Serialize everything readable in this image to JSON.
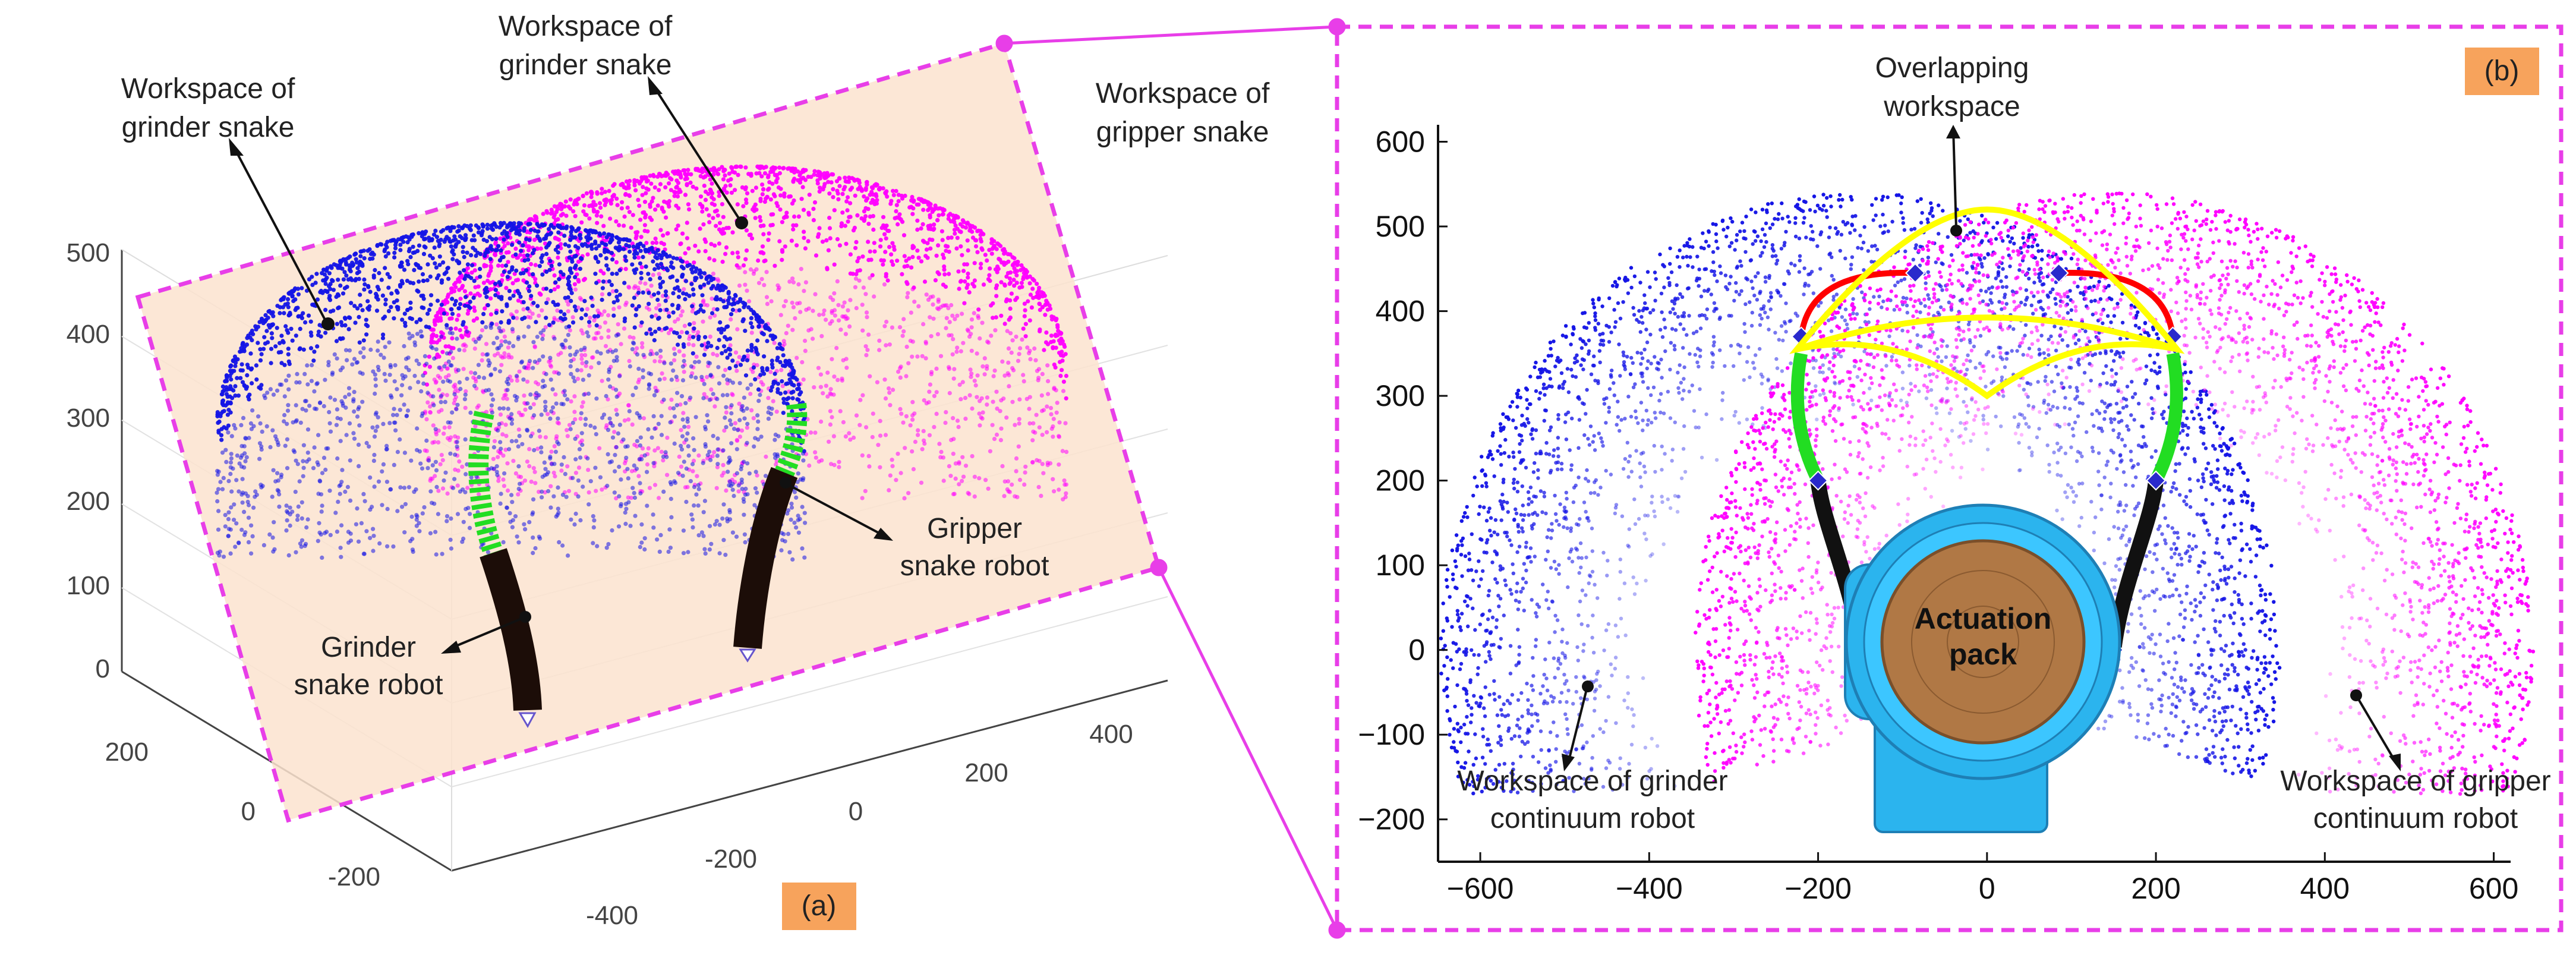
{
  "figure": {
    "panel_a": {
      "tag": "(a)",
      "labels": {
        "grinder_ws_left_1": "Workspace of",
        "grinder_ws_left_2": "grinder snake",
        "grinder_ws_top_1": "Workspace of",
        "grinder_ws_top_2": "grinder snake",
        "gripper_ws_1": "Workspace of",
        "gripper_ws_2": "gripper snake",
        "gripper_robot_1": "Gripper",
        "gripper_robot_2": "snake robot",
        "grinder_robot_1": "Grinder",
        "grinder_robot_2": "snake robot"
      }
    },
    "panel_b": {
      "tag": "(b)",
      "labels": {
        "overlap_1": "Overlapping",
        "overlap_2": "workspace",
        "actuation_1": "Actuation",
        "actuation_2": "pack",
        "grinder_cont_1": "Workspace of grinder",
        "grinder_cont_2": "continuum robot",
        "gripper_cont_1": "Workspace of gripper",
        "gripper_cont_2": "continuum robot"
      }
    },
    "colors": {
      "grinder_workspace": "#1414e6",
      "gripper_workspace": "#ff00ff",
      "frame_dashed": "#e83ee8",
      "plane_fill": "#fbe3cf",
      "overlap_outline": "#ffff00",
      "curved_segment": "#ff0000",
      "flexible_segment": "#22dd22",
      "rigid_segment": "#111111",
      "actuation_blue": "#2bb4ee",
      "actuation_wood": "#b07845",
      "tag_bg": "#f7a35c"
    }
  },
  "chart_data": [
    {
      "type": "scatter",
      "title": "",
      "dimensions": 3,
      "x_ticks": [
        -400,
        -200,
        0,
        200,
        400
      ],
      "y_ticks": [
        -200,
        0,
        200
      ],
      "z_ticks": [
        0,
        100,
        200,
        300,
        400,
        500
      ],
      "z_tick_labels": [
        "0",
        "100",
        "200",
        "300",
        "400",
        "500"
      ],
      "x_tick_labels": [
        "-400",
        "-200",
        "0",
        "200",
        "400"
      ],
      "y_tick_labels": [
        "-200",
        "0",
        "200"
      ],
      "series": [
        {
          "name": "Workspace of grinder snake",
          "color": "#1414e6",
          "center_x": -150,
          "center_y": 0,
          "max_z": 540
        },
        {
          "name": "Workspace of gripper snake",
          "color": "#ff00ff",
          "center_x": 150,
          "center_y": 0,
          "max_z": 540
        }
      ]
    },
    {
      "type": "scatter",
      "title": "",
      "xlim": [
        -650,
        620
      ],
      "ylim": [
        -250,
        620
      ],
      "x_ticks": [
        -600,
        -400,
        -200,
        0,
        200,
        400,
        600
      ],
      "x_tick_labels": [
        "−600",
        "−400",
        "−200",
        "0",
        "200",
        "400",
        "600"
      ],
      "y_ticks": [
        -200,
        -100,
        0,
        100,
        200,
        300,
        400,
        500,
        600
      ],
      "y_tick_labels": [
        "−200",
        "−100",
        "0",
        "100",
        "200",
        "300",
        "400",
        "500",
        "600"
      ],
      "series": [
        {
          "name": "Workspace of grinder continuum robot",
          "color": "#1414e6",
          "base_x": -150,
          "base_y": 0,
          "inner_radius": 270,
          "outer_radius": 540
        },
        {
          "name": "Workspace of gripper continuum robot",
          "color": "#ff00ff",
          "base_x": 150,
          "base_y": 0,
          "inner_radius": 270,
          "outer_radius": 540
        }
      ],
      "robots": [
        {
          "name": "grinder",
          "rigid": [
            [
              -150,
              0
            ],
            [
              -200,
              200
            ]
          ],
          "flexible": [
            [
              -200,
              200
            ],
            [
              -220,
              350
            ]
          ],
          "curved": [
            [
              -220,
              370
            ],
            [
              -85,
              445
            ]
          ]
        },
        {
          "name": "gripper",
          "rigid": [
            [
              150,
              0
            ],
            [
              200,
              200
            ]
          ],
          "flexible": [
            [
              200,
              200
            ],
            [
              220,
              350
            ]
          ],
          "curved": [
            [
              220,
              370
            ],
            [
              85,
              445
            ]
          ]
        }
      ]
    }
  ]
}
